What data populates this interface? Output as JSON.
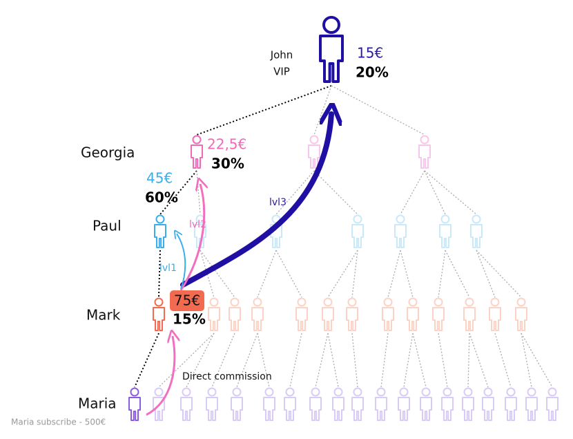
{
  "people": [
    {
      "name": "John",
      "role": "VIP",
      "amount": "15€",
      "rate": "20%"
    },
    {
      "name": "Georgia",
      "amount": "22,5€",
      "rate": "30%"
    },
    {
      "name": "Paul",
      "amount": "45€",
      "rate": "60%"
    },
    {
      "name": "Mark",
      "amount": "75€",
      "rate": "15%"
    },
    {
      "name": "Maria"
    }
  ],
  "arrows": {
    "lvl1": "lvl1",
    "lvl2": "lvl2",
    "lvl3": "lvl3",
    "direct": "Direct commission"
  },
  "footnote": "Maria subscribe - 500€"
}
